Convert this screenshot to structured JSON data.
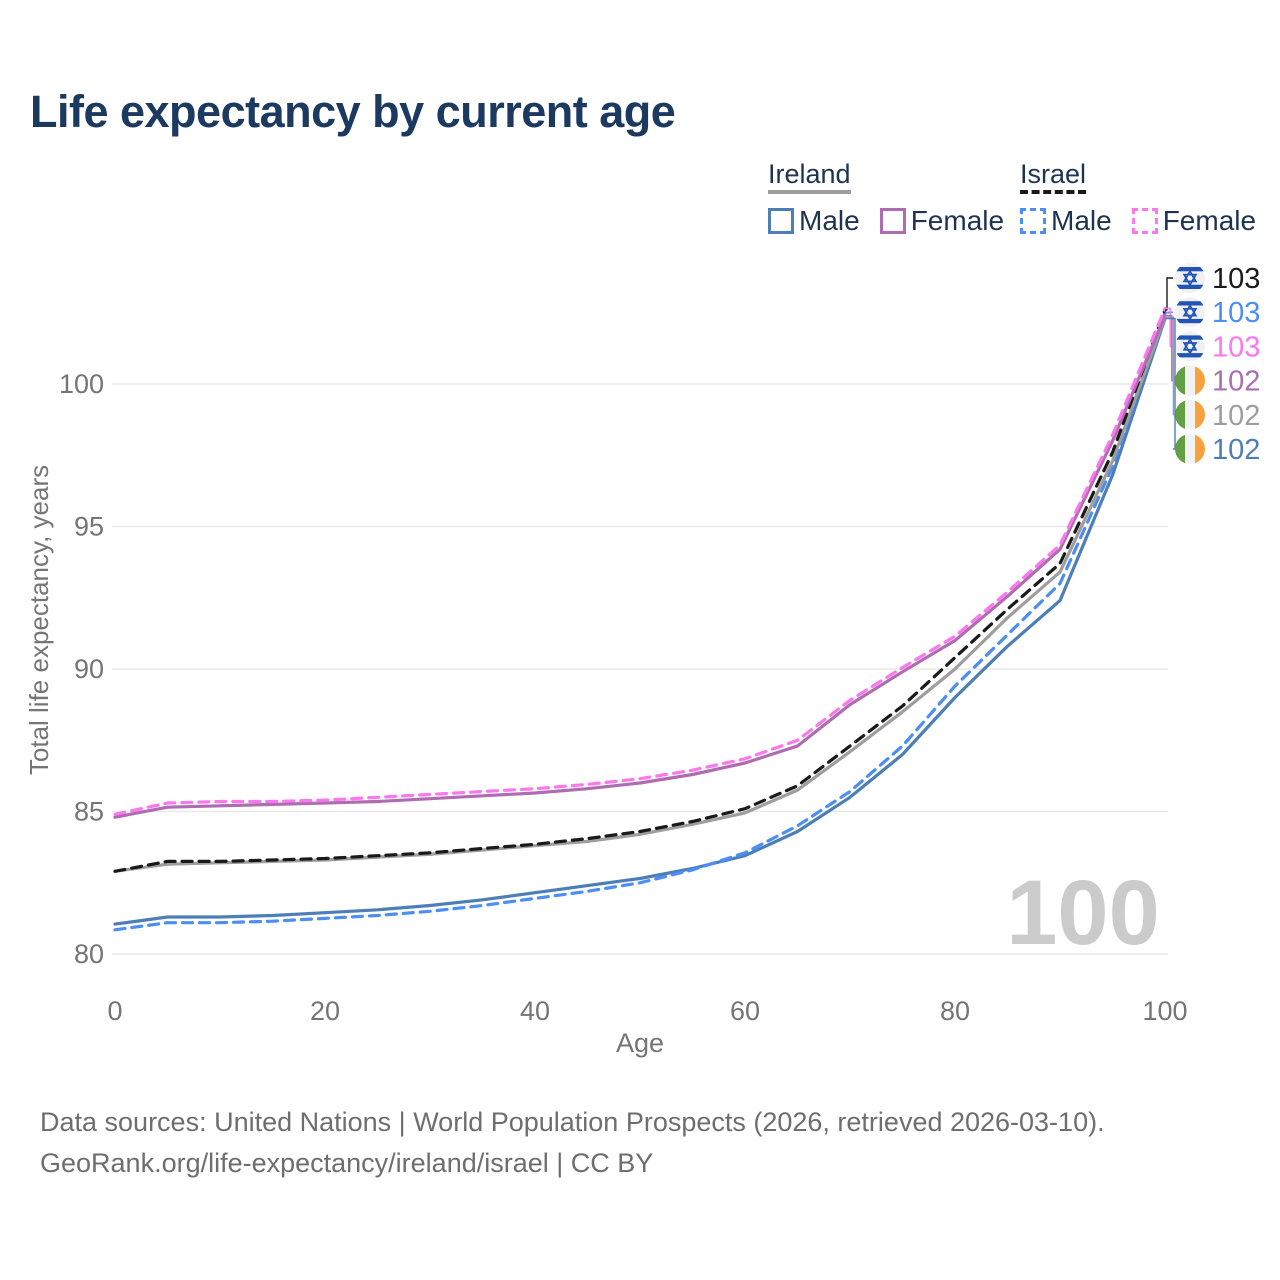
{
  "title": "Life expectancy by current age",
  "legend": {
    "groups": [
      {
        "id": "ireland",
        "label": "Ireland",
        "line_style": "solid",
        "header_rule_color": "#9e9e9e",
        "items": [
          {
            "label": "Male",
            "color": "#4d7eb8",
            "style": "solid"
          },
          {
            "label": "Female",
            "color": "#b06cb0",
            "style": "solid"
          }
        ]
      },
      {
        "id": "israel",
        "label": "Israel",
        "line_style": "dashed",
        "header_rule_color": "#1a1a1a",
        "items": [
          {
            "label": "Male",
            "color": "#4c8ef5",
            "style": "dashed"
          },
          {
            "label": "Female",
            "color": "#fb77f0",
            "style": "dashed"
          }
        ]
      }
    ]
  },
  "colors": {
    "title": "#1c3a60",
    "axis_text": "#757575",
    "gridline": "#e9e9e9",
    "watermark": "#c3c3c3",
    "ireland_male": "#4d7eb8",
    "ireland_female": "#b06cb0",
    "ireland_total": "#9e9e9e",
    "israel_male": "#4c8ef5",
    "israel_female": "#fb77f0",
    "israel_total": "#1a1a1a"
  },
  "chart_data": {
    "type": "line",
    "title": "Life expectancy by current age",
    "xlabel": "Age",
    "ylabel": "Total life expectancy, years",
    "xlim": [
      0,
      100
    ],
    "ylim": [
      79.5,
      103.5
    ],
    "xticks": [
      0,
      20,
      40,
      60,
      80,
      100
    ],
    "yticks": [
      80,
      85,
      90,
      95,
      100
    ],
    "grid": "horizontal",
    "legend_position": "top-right",
    "watermark": "100",
    "x": [
      0,
      5,
      10,
      15,
      20,
      25,
      30,
      35,
      40,
      45,
      50,
      55,
      60,
      65,
      70,
      75,
      80,
      85,
      90,
      95,
      100
    ],
    "series": [
      {
        "id": "ireland_male",
        "name": "Ireland Male",
        "color": "#4d7eb8",
        "dashed": false,
        "values": [
          81.05,
          81.3,
          81.3,
          81.35,
          81.45,
          81.55,
          81.7,
          81.9,
          82.15,
          82.4,
          82.65,
          83.0,
          83.45,
          84.3,
          85.5,
          87.0,
          89.0,
          90.8,
          92.4,
          96.8,
          102.3
        ]
      },
      {
        "id": "israel_male",
        "name": "Israel Male",
        "color": "#4c8ef5",
        "dashed": true,
        "values": [
          80.85,
          81.1,
          81.1,
          81.15,
          81.25,
          81.35,
          81.5,
          81.7,
          81.95,
          82.2,
          82.5,
          82.95,
          83.55,
          84.5,
          85.7,
          87.3,
          89.4,
          91.2,
          93.0,
          97.1,
          102.5
        ]
      },
      {
        "id": "ireland_total",
        "name": "Ireland Both sexes",
        "color": "#9e9e9e",
        "dashed": false,
        "values": [
          82.9,
          83.15,
          83.2,
          83.25,
          83.3,
          83.4,
          83.5,
          83.65,
          83.8,
          83.95,
          84.2,
          84.55,
          84.95,
          85.75,
          87.1,
          88.5,
          90.0,
          91.8,
          93.4,
          97.3,
          102.35
        ]
      },
      {
        "id": "israel_total",
        "name": "Israel Both sexes",
        "color": "#1a1a1a",
        "dashed": true,
        "values": [
          82.9,
          83.25,
          83.25,
          83.3,
          83.35,
          83.45,
          83.55,
          83.7,
          83.85,
          84.05,
          84.3,
          84.65,
          85.1,
          85.9,
          87.3,
          88.7,
          90.4,
          92.1,
          93.7,
          97.6,
          102.6
        ]
      },
      {
        "id": "ireland_female",
        "name": "Ireland Female",
        "color": "#b06cb0",
        "dashed": false,
        "values": [
          84.8,
          85.15,
          85.2,
          85.25,
          85.3,
          85.35,
          85.45,
          85.55,
          85.65,
          85.8,
          86.0,
          86.3,
          86.7,
          87.3,
          88.75,
          89.9,
          91.0,
          92.55,
          94.2,
          98.0,
          102.4
        ]
      },
      {
        "id": "israel_female",
        "name": "Israel Female",
        "color": "#fb77f0",
        "dashed": true,
        "values": [
          84.9,
          85.3,
          85.35,
          85.35,
          85.4,
          85.5,
          85.6,
          85.7,
          85.8,
          85.95,
          86.15,
          86.45,
          86.85,
          87.5,
          88.9,
          90.05,
          91.15,
          92.7,
          94.35,
          98.2,
          102.65
        ]
      }
    ],
    "end_labels": [
      {
        "series": "israel_total",
        "flag": "israel",
        "value": "103",
        "color": "#1a1a1a"
      },
      {
        "series": "israel_male",
        "flag": "israel",
        "value": "103",
        "color": "#4c8ef5"
      },
      {
        "series": "israel_female",
        "flag": "israel",
        "value": "103",
        "color": "#fb77f0"
      },
      {
        "series": "ireland_female",
        "flag": "ireland",
        "value": "102",
        "color": "#aa6fae"
      },
      {
        "series": "ireland_total",
        "flag": "ireland",
        "value": "102",
        "color": "#9e9e9e"
      },
      {
        "series": "ireland_male",
        "flag": "ireland",
        "value": "102",
        "color": "#4d7eb8"
      }
    ],
    "flags": {
      "israel": {
        "background": "#f1f1f3",
        "stripe": "#2055b5",
        "star": "#2055b5"
      },
      "ireland": {
        "green": "#63a043",
        "white": "#f2f2f2",
        "orange": "#f9a13d"
      }
    }
  },
  "footer": {
    "line1": "Data sources: United Nations | World Population Prospects (2026, retrieved 2026-03-10).",
    "line2": "GeoRank.org/life-expectancy/ireland/israel | CC BY"
  }
}
